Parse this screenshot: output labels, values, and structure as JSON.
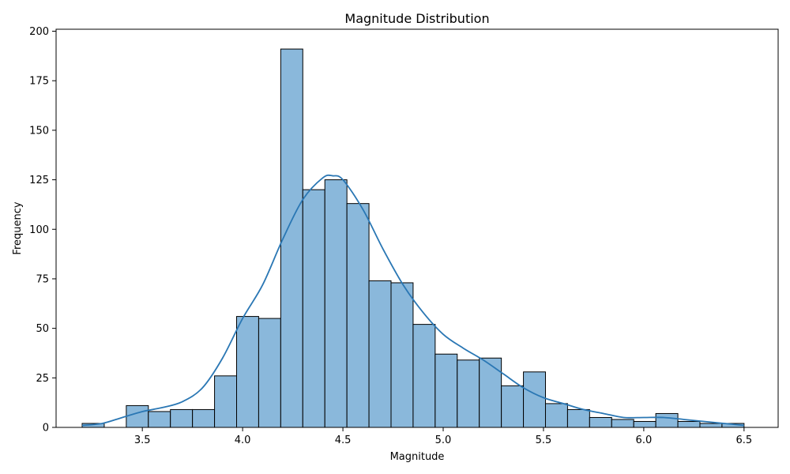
{
  "chart_data": {
    "type": "histogram",
    "title": "Magnitude Distribution",
    "xlabel": "Magnitude",
    "ylabel": "Frequency",
    "xlim": [
      3.07,
      6.67
    ],
    "ylim": [
      0,
      201
    ],
    "x_ticks": [
      "3.5",
      "4.0",
      "4.5",
      "5.0",
      "5.5",
      "6.0",
      "6.5"
    ],
    "y_ticks": [
      "0",
      "25",
      "50",
      "75",
      "100",
      "125",
      "150",
      "175",
      "200"
    ],
    "bin_start": 3.2,
    "bin_end": 6.5,
    "counts": [
      2,
      0,
      11,
      8,
      9,
      9,
      26,
      56,
      55,
      191,
      120,
      125,
      113,
      74,
      73,
      52,
      37,
      34,
      35,
      21,
      28,
      12,
      9,
      5,
      4,
      3,
      7,
      3,
      2,
      2
    ],
    "kde": {
      "x": [
        3.2,
        3.3,
        3.4,
        3.5,
        3.6,
        3.7,
        3.8,
        3.9,
        4.0,
        4.1,
        4.2,
        4.3,
        4.4,
        4.45,
        4.5,
        4.6,
        4.7,
        4.8,
        4.9,
        5.0,
        5.1,
        5.2,
        5.3,
        5.4,
        5.5,
        5.6,
        5.7,
        5.8,
        5.9,
        6.0,
        6.1,
        6.2,
        6.3,
        6.4,
        6.5
      ],
      "y": [
        1,
        2,
        5,
        8,
        10,
        13,
        20,
        35,
        55,
        72,
        95,
        115,
        126,
        127,
        125,
        110,
        90,
        72,
        58,
        47,
        40,
        34,
        27,
        20,
        15,
        12,
        9,
        7,
        5,
        5,
        5,
        4,
        3,
        2,
        1
      ]
    },
    "grid": false,
    "bar_color": "#8ab8db",
    "bar_edge_color": "#000000",
    "line_color": "#2a77b4"
  }
}
